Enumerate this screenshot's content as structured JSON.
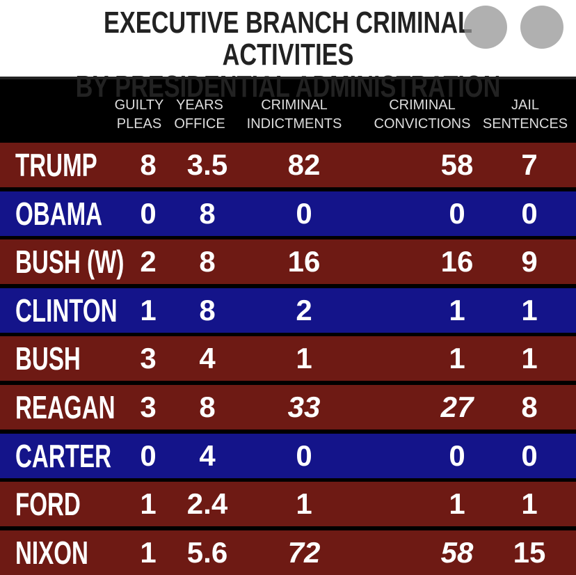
{
  "title": "EXECUTIVE BRANCH CRIMINAL ACTIVITIES\nBY PRESIDENTIAL ADMINISTRATION",
  "table": {
    "headers": [
      "GUILTY\nPLEAS",
      "YEARS\nOFFICE",
      "CRIMINAL\nINDICTMENTS",
      "CRIMINAL\nCONVICTIONS",
      "JAIL\nSENTENCES"
    ],
    "rows": [
      {
        "name": "TRUMP",
        "color": "#6e1a14",
        "cells": [
          8,
          3.5,
          82,
          58,
          7
        ]
      },
      {
        "name": "OBAMA",
        "color": "#14148a",
        "cells": [
          0,
          8,
          0,
          0,
          0
        ]
      },
      {
        "name": "BUSH (W)",
        "color": "#6e1a14",
        "cells": [
          2,
          8,
          16,
          16,
          9
        ]
      },
      {
        "name": "CLINTON",
        "color": "#14148a",
        "cells": [
          1,
          8,
          2,
          1,
          1
        ]
      },
      {
        "name": "BUSH",
        "color": "#6e1a14",
        "cells": [
          3,
          4,
          1,
          1,
          1
        ]
      },
      {
        "name": "REAGAN",
        "color": "#6e1a14",
        "cells": [
          3,
          8,
          33,
          27,
          8
        ]
      },
      {
        "name": "CARTER",
        "color": "#14148a",
        "cells": [
          0,
          4,
          0,
          0,
          0
        ]
      },
      {
        "name": "FORD",
        "color": "#6e1a14",
        "cells": [
          1,
          2.4,
          1,
          1,
          1
        ]
      },
      {
        "name": "NIXON",
        "color": "#6e1a14",
        "cells": [
          1,
          5.6,
          72,
          58,
          15
        ]
      }
    ]
  }
}
